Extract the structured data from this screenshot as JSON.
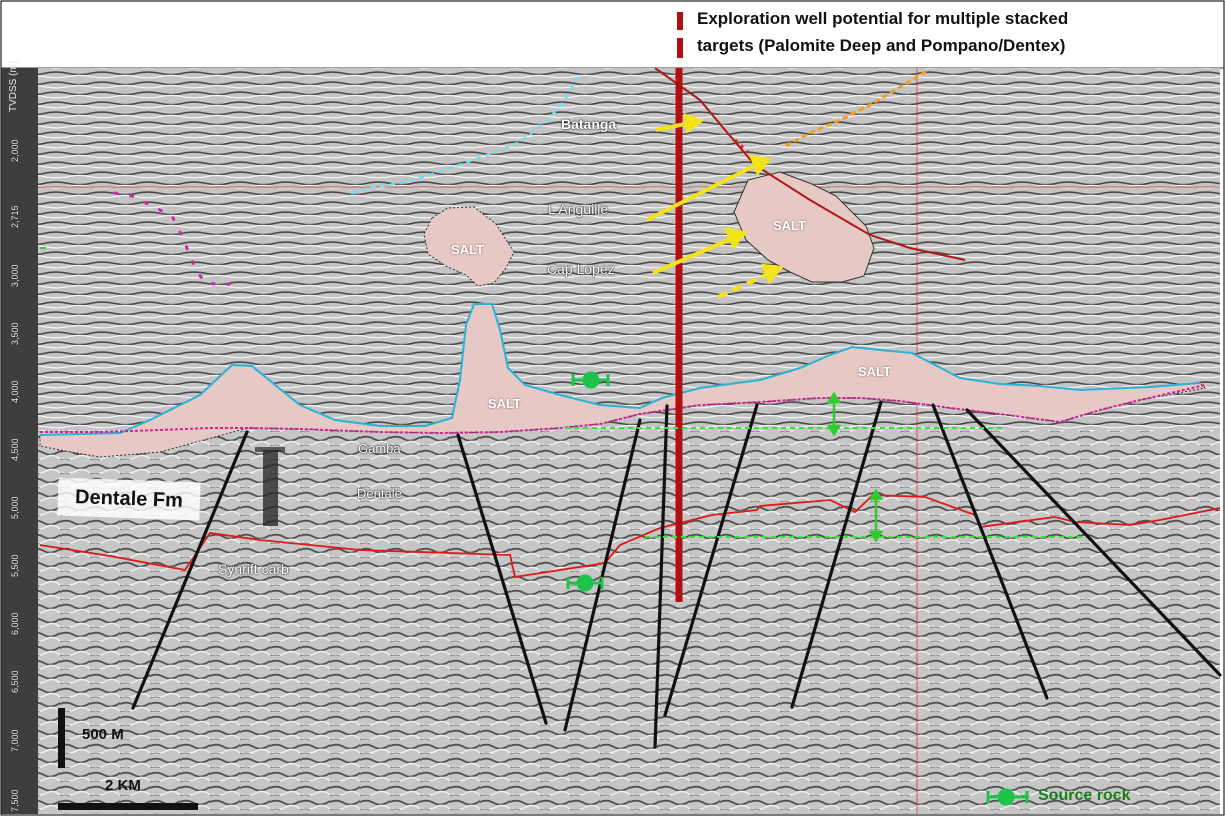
{
  "header": {
    "line1": "Exploration  well potential for multiple stacked",
    "line2": "targets (Palomite Deep and Pompano/Dentex)"
  },
  "axis": {
    "title": "TVDSS (m)",
    "ticks": [
      "2,000",
      "2,715",
      "3,000",
      "3,500",
      "4,000",
      "4,500",
      "5,000",
      "5,500",
      "6,000",
      "6,500",
      "7,000",
      "7,500"
    ]
  },
  "labels": {
    "batanga": "Batanga",
    "l_anguille": "L Anguille",
    "cap_lopez": "Cap Lopez",
    "salt": "SALT",
    "gamba": "Gamba",
    "dentale": "Dentale",
    "dentale_fm": "Dentale Fm",
    "synrift": "Synrift carb"
  },
  "scale": {
    "vertical": "500 M",
    "horizontal": "2 KM"
  },
  "legend": {
    "source_rock": "Source rock"
  },
  "colors": {
    "salt_fill": "#e6c9c4",
    "well": "#b01010",
    "fault": "#111111",
    "horizon_red": "#e01818",
    "top_salt": "#2bb3d6",
    "base_salt": "#d81e9a",
    "arrow_yellow": "#f5e31a",
    "source_rock_green": "#1ec44a"
  }
}
